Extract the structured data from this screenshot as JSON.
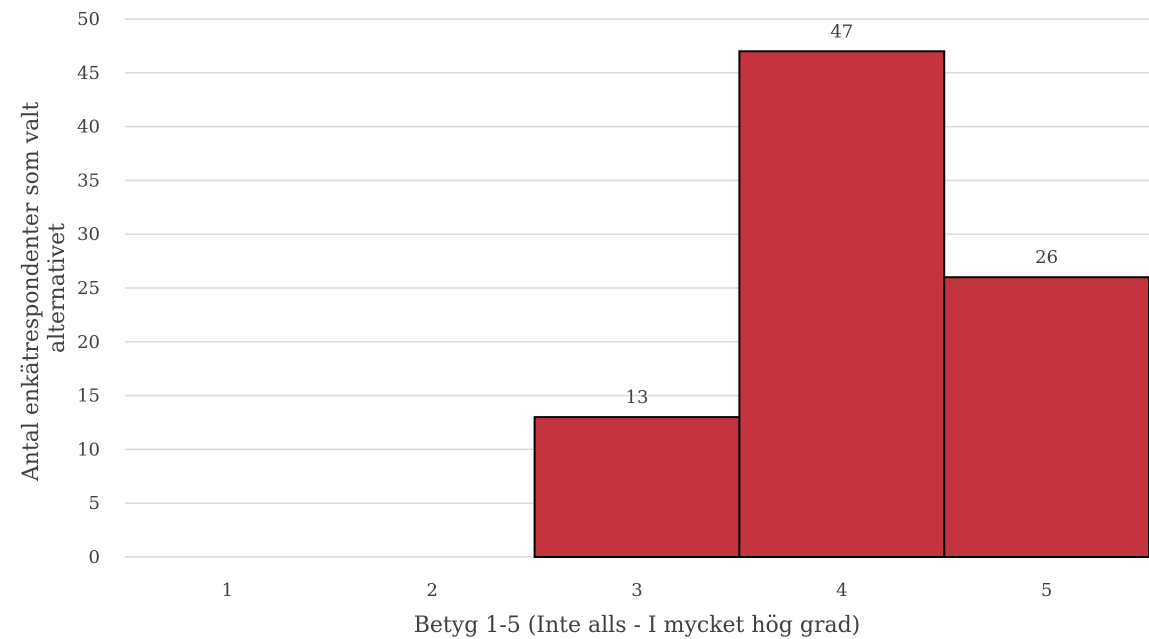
{
  "chart_data": {
    "type": "bar",
    "categories": [
      "1",
      "2",
      "3",
      "4",
      "5"
    ],
    "values": [
      0,
      0,
      13,
      47,
      26
    ],
    "xlabel": "Betyg 1-5 (Inte alls - I mycket hög grad)",
    "ylabel_lines": [
      "Antal enkätrespondenter som valt",
      "alternativet"
    ],
    "ylim": [
      0,
      50
    ],
    "yticks": [
      0,
      5,
      10,
      15,
      20,
      25,
      30,
      35,
      40,
      45,
      50
    ],
    "grid": true,
    "legend": "none",
    "data_labels": true,
    "colors": {
      "bar": "#c3343f",
      "bar_edge": "#000000",
      "grid": "#d9d9d9",
      "text": "#404040"
    }
  }
}
